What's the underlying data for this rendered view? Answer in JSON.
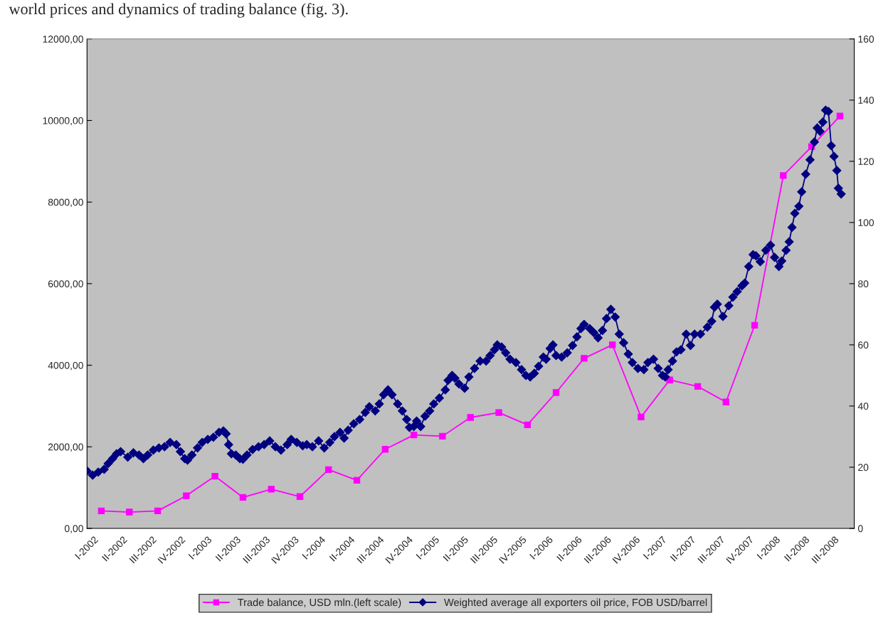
{
  "chart_data": {
    "type": "line",
    "annotations": [
      "world prices and dynamics of trading balance (fig. 3)."
    ],
    "xlim": [
      "2002-01-01",
      "2008-10-01"
    ],
    "xticks": [
      {
        "value": "2002-01-01",
        "label": "I-2002"
      },
      {
        "value": "2002-04-01",
        "label": "II-2002"
      },
      {
        "value": "2002-07-01",
        "label": "III-2002"
      },
      {
        "value": "2002-10-01",
        "label": "IV-2002"
      },
      {
        "value": "2003-01-01",
        "label": "I-2003"
      },
      {
        "value": "2003-04-01",
        "label": "II-2003"
      },
      {
        "value": "2003-07-01",
        "label": "III-2003"
      },
      {
        "value": "2003-10-01",
        "label": "IV-2003"
      },
      {
        "value": "2004-01-01",
        "label": "I-2004"
      },
      {
        "value": "2004-04-01",
        "label": "II-2004"
      },
      {
        "value": "2004-07-01",
        "label": "III-2004"
      },
      {
        "value": "2004-10-01",
        "label": "IV-2004"
      },
      {
        "value": "2005-01-01",
        "label": "I-2005"
      },
      {
        "value": "2005-04-01",
        "label": "II-2005"
      },
      {
        "value": "2005-07-01",
        "label": "III-2005"
      },
      {
        "value": "2005-10-01",
        "label": "IV-2005"
      },
      {
        "value": "2006-01-01",
        "label": "I-2006"
      },
      {
        "value": "2006-04-01",
        "label": "II-2006"
      },
      {
        "value": "2006-07-01",
        "label": "III-2006"
      },
      {
        "value": "2006-10-01",
        "label": "IV-2006"
      },
      {
        "value": "2007-01-01",
        "label": "I-2007"
      },
      {
        "value": "2007-04-01",
        "label": "II-2007"
      },
      {
        "value": "2007-07-01",
        "label": "III-2007"
      },
      {
        "value": "2007-10-01",
        "label": "IV-2007"
      },
      {
        "value": "2008-01-01",
        "label": "I-2008"
      },
      {
        "value": "2008-04-01",
        "label": "II-2008"
      },
      {
        "value": "2008-07-01",
        "label": "III-2008"
      }
    ],
    "ylim": [
      0,
      12000
    ],
    "yticks": [
      {
        "value": 0,
        "label": "0,00"
      },
      {
        "value": 2000,
        "label": "2000,00"
      },
      {
        "value": 4000,
        "label": "4000,00"
      },
      {
        "value": 6000,
        "label": "6000,00"
      },
      {
        "value": 8000,
        "label": "8000,00"
      },
      {
        "value": 10000,
        "label": "10000,00"
      },
      {
        "value": 12000,
        "label": "12000,00"
      }
    ],
    "y2lim": [
      0,
      160
    ],
    "y2ticks": [
      0,
      20,
      40,
      60,
      80,
      100,
      120,
      140,
      160
    ],
    "grid": false,
    "legend": "bottom",
    "series": [
      {
        "name": "Trade balance, USD mln.(left scale)",
        "color": "#ff00ff",
        "marker": "square",
        "x": [
          "2002-02-16",
          "2002-05-17",
          "2002-08-16",
          "2002-11-16",
          "2003-02-16",
          "2003-05-17",
          "2003-08-16",
          "2003-11-16",
          "2004-02-16",
          "2004-05-17",
          "2004-08-16",
          "2004-11-16",
          "2005-02-16",
          "2005-05-17",
          "2005-08-16",
          "2005-11-16",
          "2006-02-16",
          "2006-05-17",
          "2006-08-16",
          "2006-11-16",
          "2007-02-16",
          "2007-05-17",
          "2007-08-16",
          "2007-11-16",
          "2008-02-16",
          "2008-05-17",
          "2008-08-16"
        ],
        "values": [
          430,
          400,
          430,
          800,
          1280,
          760,
          960,
          780,
          1440,
          1180,
          1940,
          2290,
          2260,
          2720,
          2840,
          2540,
          3330,
          4170,
          4500,
          2730,
          3640,
          3480,
          3100,
          4980,
          8650,
          9360,
          10110
        ]
      },
      {
        "name": "Weighted average all exporters oil price, FOB USD/barrel",
        "color": "#000080",
        "marker": "diamond",
        "axis": "y2",
        "x": [
          "2002-01-01",
          "2002-01-19",
          "2002-02-06",
          "2002-02-25",
          "2002-03-10",
          "2002-03-24",
          "2002-04-06",
          "2002-04-19",
          "2002-05-12",
          "2002-05-30",
          "2002-06-17",
          "2002-07-01",
          "2002-07-15",
          "2002-08-02",
          "2002-08-20",
          "2002-09-07",
          "2002-09-25",
          "2002-10-15",
          "2002-10-28",
          "2002-11-11",
          "2002-11-20",
          "2002-12-04",
          "2002-12-22",
          "2003-01-06",
          "2003-01-24",
          "2003-02-11",
          "2003-03-01",
          "2003-03-15",
          "2003-03-24",
          "2003-04-01",
          "2003-04-10",
          "2003-04-24",
          "2003-05-07",
          "2003-05-17",
          "2003-05-30",
          "2003-06-17",
          "2003-07-06",
          "2003-07-24",
          "2003-08-11",
          "2003-08-29",
          "2003-09-16",
          "2003-10-06",
          "2003-10-19",
          "2003-11-06",
          "2003-11-25",
          "2003-12-08",
          "2003-12-26",
          "2004-01-15",
          "2004-02-02",
          "2004-02-20",
          "2004-03-06",
          "2004-03-24",
          "2004-04-06",
          "2004-04-19",
          "2004-05-07",
          "2004-05-26",
          "2004-06-13",
          "2004-06-26",
          "2004-07-15",
          "2004-07-28",
          "2004-08-11",
          "2004-08-25",
          "2004-09-07",
          "2004-09-25",
          "2004-10-10",
          "2004-10-24",
          "2004-11-02",
          "2004-11-16",
          "2004-11-25",
          "2004-12-08",
          "2004-12-22",
          "2005-01-06",
          "2005-01-19",
          "2005-02-06",
          "2005-02-25",
          "2005-03-06",
          "2005-03-19",
          "2005-03-28",
          "2005-04-10",
          "2005-04-28",
          "2005-05-12",
          "2005-05-30",
          "2005-06-17",
          "2005-07-06",
          "2005-07-19",
          "2005-08-02",
          "2005-08-11",
          "2005-08-25",
          "2005-09-07",
          "2005-09-21",
          "2005-10-10",
          "2005-10-28",
          "2005-11-11",
          "2005-11-25",
          "2005-12-08",
          "2005-12-22",
          "2006-01-06",
          "2006-01-15",
          "2006-01-28",
          "2006-02-06",
          "2006-02-16",
          "2006-03-06",
          "2006-03-24",
          "2006-04-10",
          "2006-04-24",
          "2006-05-07",
          "2006-05-17",
          "2006-06-04",
          "2006-06-17",
          "2006-07-01",
          "2006-07-15",
          "2006-07-28",
          "2006-08-11",
          "2006-08-25",
          "2006-09-07",
          "2006-09-21",
          "2006-10-06",
          "2006-10-19",
          "2006-11-06",
          "2006-11-25",
          "2006-12-08",
          "2006-12-26",
          "2007-01-10",
          "2007-01-24",
          "2007-02-02",
          "2007-02-11",
          "2007-02-25",
          "2007-03-10",
          "2007-03-24",
          "2007-04-10",
          "2007-04-24",
          "2007-05-07",
          "2007-05-26",
          "2007-06-17",
          "2007-07-01",
          "2007-07-10",
          "2007-07-19",
          "2007-08-06",
          "2007-08-25",
          "2007-09-07",
          "2007-09-21",
          "2007-10-06",
          "2007-10-15",
          "2007-10-28",
          "2007-11-11",
          "2007-11-20",
          "2007-12-04",
          "2007-12-22",
          "2008-01-06",
          "2008-01-19",
          "2008-02-02",
          "2008-02-11",
          "2008-02-25",
          "2008-03-06",
          "2008-03-15",
          "2008-03-24",
          "2008-04-06",
          "2008-04-15",
          "2008-04-28",
          "2008-05-12",
          "2008-05-26",
          "2008-06-04",
          "2008-06-13",
          "2008-06-22",
          "2008-07-01",
          "2008-07-10",
          "2008-07-19",
          "2008-07-28",
          "2008-08-06",
          "2008-08-11",
          "2008-08-20"
        ],
        "values": [
          18.8,
          17.4,
          18.4,
          19.3,
          21.2,
          22.8,
          24.4,
          25.1,
          23.3,
          24.7,
          24.0,
          22.8,
          24.0,
          25.6,
          26.3,
          26.7,
          28.1,
          27.4,
          25.1,
          22.8,
          22.3,
          24.0,
          26.3,
          28.1,
          29.1,
          29.8,
          31.4,
          31.9,
          30.9,
          27.4,
          24.4,
          24.0,
          22.8,
          22.6,
          24.0,
          25.8,
          26.7,
          27.4,
          28.6,
          26.7,
          25.6,
          27.4,
          29.1,
          28.1,
          27.0,
          27.4,
          26.7,
          28.6,
          26.3,
          28.1,
          30.0,
          31.4,
          29.5,
          32.1,
          34.2,
          35.6,
          37.9,
          39.8,
          38.4,
          40.7,
          43.7,
          45.3,
          43.7,
          40.7,
          38.4,
          35.6,
          33.0,
          33.3,
          35.1,
          33.3,
          36.7,
          38.4,
          40.7,
          42.6,
          45.3,
          48.4,
          50.0,
          49.1,
          47.2,
          45.8,
          49.5,
          52.3,
          54.7,
          54.7,
          56.5,
          58.4,
          60.0,
          59.3,
          57.4,
          55.3,
          54.2,
          51.9,
          50.0,
          49.5,
          50.7,
          53.0,
          56.0,
          55.3,
          58.8,
          60.0,
          56.5,
          56.0,
          57.4,
          59.8,
          62.6,
          65.3,
          66.7,
          65.3,
          64.0,
          62.3,
          64.7,
          68.6,
          71.6,
          69.1,
          63.5,
          60.7,
          57.0,
          54.2,
          52.3,
          51.9,
          54.2,
          55.3,
          52.3,
          50.0,
          49.5,
          51.9,
          54.7,
          57.7,
          58.4,
          63.5,
          59.8,
          63.5,
          63.5,
          65.8,
          67.7,
          72.3,
          73.3,
          69.3,
          72.8,
          75.6,
          77.4,
          79.3,
          80.2,
          85.6,
          89.5,
          89.1,
          87.2,
          90.9,
          92.6,
          88.6,
          85.6,
          87.4,
          90.9,
          93.7,
          98.4,
          103.0,
          105.3,
          110.0,
          115.8,
          120.5,
          126.3,
          130.9,
          129.8,
          132.8,
          136.7,
          136.3,
          125.1,
          121.6,
          117.0,
          111.2,
          109.3
        ]
      }
    ]
  }
}
